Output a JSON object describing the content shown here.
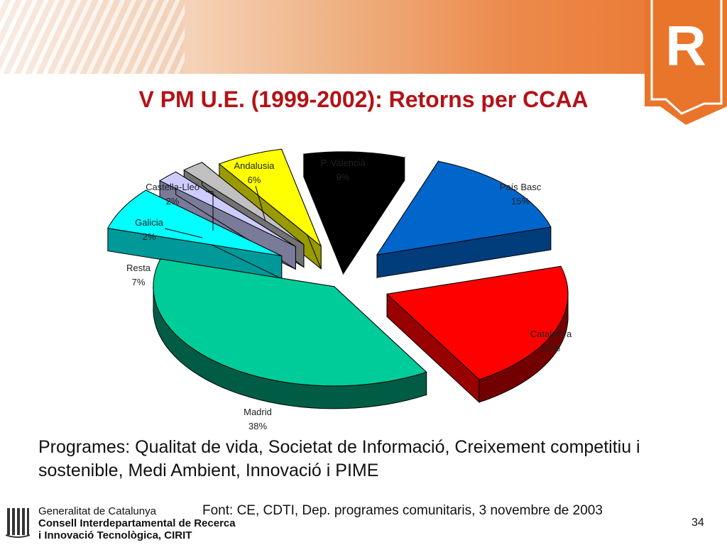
{
  "slide": {
    "title": "V PM U.E. (1999-2002): Retorns per CCAA",
    "body": "Programes: Qualitat de vida, Societat de Informació, Creixement competitiu i sostenible, Medi Ambient, Innovació i PIME",
    "source": "Font: CE, CDTI, Dep. programes comunitaris, 3 novembre de 2003",
    "page_number": "34",
    "logo_letter": "R"
  },
  "footer": {
    "line1": "Generalitat de Catalunya",
    "line2": "Consell Interdepartamental de Recerca",
    "line3": "i Innovació Tecnològica, CIRIT"
  },
  "colors": {
    "header_orange": "#e9752b",
    "title_red": "#b31217"
  },
  "chart_data": {
    "type": "pie",
    "style": "3d-exploded",
    "title": "",
    "slices": [
      {
        "name": "P. Valencià",
        "value": 9,
        "label": "9%",
        "color": "#000000"
      },
      {
        "name": "País Basc",
        "value": 15,
        "label": "15%",
        "color": "#0066cc"
      },
      {
        "name": "Catalunya",
        "value": 21,
        "label": "21%",
        "color": "#ff0000"
      },
      {
        "name": "Madrid",
        "value": 38,
        "label": "38%",
        "color": "#00cc99"
      },
      {
        "name": "Resta",
        "value": 7,
        "label": "7%",
        "color": "#00ffff"
      },
      {
        "name": "Galicia",
        "value": 2,
        "label": "2%",
        "color": "#ccccff"
      },
      {
        "name": "Castella-Lleó",
        "value": 2,
        "label": "2%",
        "color": "#c0c0c0"
      },
      {
        "name": "Andalusia",
        "value": 6,
        "label": "6%",
        "color": "#ffff00"
      }
    ]
  }
}
